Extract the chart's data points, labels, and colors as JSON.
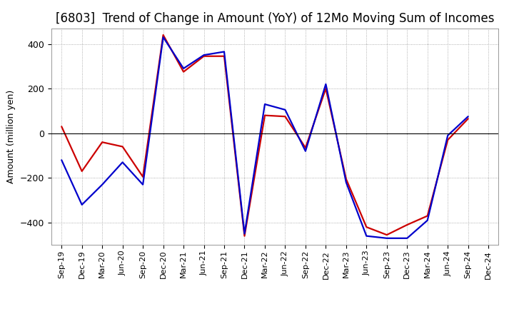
{
  "title": "[6803]  Trend of Change in Amount (YoY) of 12Mo Moving Sum of Incomes",
  "ylabel": "Amount (million yen)",
  "x_labels": [
    "Sep-19",
    "Dec-19",
    "Mar-20",
    "Jun-20",
    "Sep-20",
    "Dec-20",
    "Mar-21",
    "Jun-21",
    "Sep-21",
    "Dec-21",
    "Mar-22",
    "Jun-22",
    "Sep-22",
    "Dec-22",
    "Mar-23",
    "Jun-23",
    "Sep-23",
    "Dec-23",
    "Mar-24",
    "Jun-24",
    "Sep-24",
    "Dec-24"
  ],
  "ordinary_income": [
    -120,
    -320,
    -230,
    -130,
    -230,
    430,
    290,
    350,
    365,
    -450,
    130,
    105,
    -80,
    220,
    -220,
    -460,
    -470,
    -470,
    -390,
    -10,
    75,
    null
  ],
  "net_income": [
    30,
    -170,
    -40,
    -60,
    -195,
    440,
    275,
    345,
    345,
    -460,
    80,
    75,
    -65,
    200,
    -205,
    -420,
    -455,
    -410,
    -370,
    -30,
    65,
    null
  ],
  "ylim": [
    -500,
    470
  ],
  "yticks": [
    -400,
    -200,
    0,
    200,
    400
  ],
  "ordinary_color": "#0000cc",
  "net_color": "#cc0000",
  "line_width": 1.6,
  "background_color": "#ffffff",
  "grid_color": "#999999",
  "title_fontsize": 12,
  "axis_fontsize": 9,
  "tick_fontsize": 8
}
